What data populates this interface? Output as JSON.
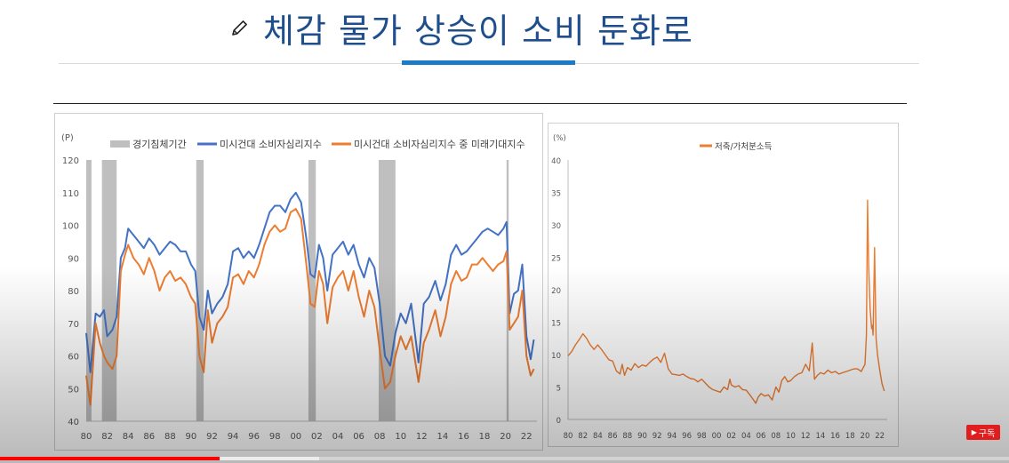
{
  "slide": {
    "title": "체감 물가 상승이 소비 둔화로",
    "title_icon": "pencil-icon"
  },
  "colors": {
    "blue": "#4472c4",
    "orange": "#ed7d31",
    "recession": "#bfbfbf",
    "title": "#1f4e8c",
    "accent": "#1a7cc8"
  },
  "video": {
    "subscribe_label": "구독",
    "progress": 0.218,
    "buffered": 0.316
  },
  "chart_data": [
    {
      "type": "line",
      "ylabel": "(P)",
      "ylim": [
        40,
        120
      ],
      "yticks": [
        40,
        50,
        60,
        70,
        80,
        90,
        100,
        110,
        120
      ],
      "xlim": [
        1980,
        2023
      ],
      "xticks": [
        "80",
        "82",
        "84",
        "86",
        "88",
        "90",
        "92",
        "94",
        "96",
        "98",
        "00",
        "02",
        "04",
        "06",
        "08",
        "10",
        "12",
        "14",
        "16",
        "18",
        "20",
        "22"
      ],
      "legend": [
        "경기침체기간",
        "미시건대 소비자심리지수",
        "미시건대 소비자심리지수 중 미래기대지수"
      ],
      "legend_position": "top",
      "recession_periods": [
        [
          1980.0,
          1980.5
        ],
        [
          1981.5,
          1982.9
        ],
        [
          1990.5,
          1991.2
        ],
        [
          2001.2,
          2001.9
        ],
        [
          2007.9,
          2009.5
        ],
        [
          2020.1,
          2020.3
        ]
      ],
      "series": [
        {
          "name": "미시건대 소비자심리지수",
          "x": [
            1980.0,
            1980.4,
            1980.9,
            1981.3,
            1981.7,
            1982.0,
            1982.5,
            1982.9,
            1983.3,
            1983.7,
            1984.0,
            1984.5,
            1985.0,
            1985.5,
            1986.0,
            1986.5,
            1987.0,
            1987.5,
            1988.0,
            1988.5,
            1989.0,
            1989.5,
            1990.0,
            1990.4,
            1990.8,
            1991.2,
            1991.6,
            1992.0,
            1992.5,
            1993.0,
            1993.5,
            1994.0,
            1994.5,
            1995.0,
            1995.5,
            1996.0,
            1996.5,
            1997.0,
            1997.5,
            1998.0,
            1998.5,
            1999.0,
            1999.5,
            2000.0,
            2000.5,
            2001.0,
            2001.4,
            2001.8,
            2002.2,
            2002.6,
            2003.0,
            2003.5,
            2004.0,
            2004.5,
            2005.0,
            2005.5,
            2006.0,
            2006.5,
            2007.0,
            2007.5,
            2008.0,
            2008.5,
            2009.0,
            2009.5,
            2010.0,
            2010.5,
            2011.0,
            2011.7,
            2012.2,
            2012.7,
            2013.3,
            2013.8,
            2014.3,
            2014.8,
            2015.3,
            2015.8,
            2016.3,
            2016.8,
            2017.3,
            2017.8,
            2018.3,
            2018.8,
            2019.3,
            2019.8,
            2020.1,
            2020.4,
            2020.8,
            2021.2,
            2021.6,
            2022.0,
            2022.4,
            2022.7
          ],
          "values": [
            67,
            55,
            73,
            72,
            74,
            66,
            68,
            72,
            90,
            93,
            99,
            97,
            95,
            93,
            96,
            94,
            91,
            93,
            95,
            94,
            92,
            92,
            88,
            86,
            72,
            68,
            80,
            73,
            76,
            78,
            82,
            92,
            93,
            90,
            92,
            90,
            94,
            99,
            104,
            106,
            106,
            104,
            108,
            110,
            107,
            96,
            85,
            84,
            94,
            90,
            80,
            91,
            93,
            95,
            91,
            94,
            88,
            84,
            90,
            87,
            76,
            60,
            57,
            67,
            73,
            70,
            76,
            58,
            76,
            78,
            83,
            77,
            82,
            91,
            94,
            91,
            92,
            94,
            96,
            98,
            99,
            98,
            97,
            99,
            101,
            73,
            79,
            80,
            88,
            66,
            59,
            65
          ]
        },
        {
          "name": "미시건대 소비자심리지수 중 미래기대지수",
          "x": [
            1980.0,
            1980.4,
            1980.9,
            1981.3,
            1981.7,
            1982.0,
            1982.5,
            1982.9,
            1983.3,
            1983.7,
            1984.0,
            1984.5,
            1985.0,
            1985.5,
            1986.0,
            1986.5,
            1987.0,
            1987.5,
            1988.0,
            1988.5,
            1989.0,
            1989.5,
            1990.0,
            1990.4,
            1990.8,
            1991.2,
            1991.6,
            1992.0,
            1992.5,
            1993.0,
            1993.5,
            1994.0,
            1994.5,
            1995.0,
            1995.5,
            1996.0,
            1996.5,
            1997.0,
            1997.5,
            1998.0,
            1998.5,
            1999.0,
            1999.5,
            2000.0,
            2000.5,
            2001.0,
            2001.4,
            2001.8,
            2002.2,
            2002.6,
            2003.0,
            2003.5,
            2004.0,
            2004.5,
            2005.0,
            2005.5,
            2006.0,
            2006.5,
            2007.0,
            2007.5,
            2008.0,
            2008.5,
            2009.0,
            2009.5,
            2010.0,
            2010.5,
            2011.0,
            2011.7,
            2012.2,
            2012.7,
            2013.3,
            2013.8,
            2014.3,
            2014.8,
            2015.3,
            2015.8,
            2016.3,
            2016.8,
            2017.3,
            2017.8,
            2018.3,
            2018.8,
            2019.3,
            2019.8,
            2020.1,
            2020.4,
            2020.8,
            2021.2,
            2021.6,
            2022.0,
            2022.4,
            2022.7
          ],
          "values": [
            54,
            45,
            70,
            64,
            60,
            58,
            56,
            60,
            86,
            91,
            94,
            90,
            88,
            85,
            90,
            86,
            80,
            84,
            86,
            83,
            84,
            82,
            78,
            76,
            60,
            55,
            74,
            64,
            70,
            72,
            75,
            84,
            85,
            82,
            86,
            84,
            88,
            94,
            98,
            100,
            98,
            99,
            104,
            105,
            102,
            88,
            76,
            75,
            86,
            82,
            70,
            81,
            84,
            86,
            80,
            86,
            78,
            72,
            80,
            75,
            62,
            50,
            52,
            60,
            66,
            62,
            66,
            52,
            64,
            68,
            74,
            66,
            72,
            82,
            86,
            83,
            84,
            88,
            88,
            90,
            88,
            86,
            88,
            89,
            92,
            68,
            70,
            72,
            80,
            60,
            54,
            56
          ]
        }
      ]
    },
    {
      "type": "line",
      "ylabel": "(%)",
      "ylim": [
        0,
        40
      ],
      "yticks": [
        0,
        5,
        10,
        15,
        20,
        25,
        30,
        35,
        40
      ],
      "xlim": [
        1980,
        2023
      ],
      "xticks": [
        "80",
        "82",
        "84",
        "86",
        "88",
        "90",
        "92",
        "94",
        "96",
        "98",
        "00",
        "02",
        "04",
        "06",
        "08",
        "10",
        "12",
        "14",
        "16",
        "18",
        "20",
        "22"
      ],
      "legend": [
        "저축/가처분소득"
      ],
      "legend_position": "top-center",
      "series": [
        {
          "name": "저축/가처분소득",
          "x": [
            1980.0,
            1980.5,
            1981.0,
            1981.5,
            1982.0,
            1982.5,
            1983.0,
            1983.5,
            1984.0,
            1984.5,
            1985.0,
            1985.5,
            1986.0,
            1986.5,
            1987.0,
            1987.3,
            1987.6,
            1988.0,
            1988.5,
            1989.0,
            1989.5,
            1990.0,
            1990.5,
            1991.0,
            1991.5,
            1992.0,
            1992.5,
            1993.0,
            1993.5,
            1994.0,
            1994.5,
            1995.0,
            1995.5,
            1996.0,
            1996.5,
            1997.0,
            1997.5,
            1998.0,
            1998.5,
            1999.0,
            1999.5,
            2000.0,
            2000.5,
            2001.0,
            2001.5,
            2001.8,
            2002.0,
            2002.5,
            2003.0,
            2003.5,
            2004.0,
            2004.5,
            2005.0,
            2005.3,
            2005.6,
            2006.0,
            2006.5,
            2007.0,
            2007.5,
            2008.0,
            2008.4,
            2008.8,
            2009.2,
            2009.6,
            2010.0,
            2010.5,
            2011.0,
            2011.5,
            2012.0,
            2012.5,
            2012.9,
            2013.2,
            2013.6,
            2014.0,
            2014.5,
            2015.0,
            2015.5,
            2016.0,
            2016.5,
            2017.0,
            2017.5,
            2018.0,
            2018.5,
            2019.0,
            2019.5,
            2020.0,
            2020.2,
            2020.35,
            2020.5,
            2020.7,
            2020.9,
            2021.0,
            2021.1,
            2021.3,
            2021.5,
            2021.7,
            2022.0,
            2022.3,
            2022.6
          ],
          "values": [
            9.8,
            10.5,
            11.5,
            12.3,
            13.2,
            12.5,
            11.5,
            10.8,
            11.5,
            10.8,
            10.0,
            9.2,
            9.0,
            7.5,
            7.0,
            8.5,
            6.8,
            8.0,
            7.6,
            8.6,
            8.0,
            8.4,
            8.2,
            8.8,
            9.3,
            9.6,
            8.8,
            10.2,
            7.8,
            7.0,
            6.9,
            6.8,
            7.0,
            6.6,
            6.3,
            6.2,
            5.8,
            6.2,
            5.6,
            5.0,
            4.6,
            4.4,
            4.2,
            5.0,
            4.6,
            6.2,
            5.3,
            5.0,
            5.2,
            4.6,
            4.5,
            3.8,
            3.0,
            2.5,
            3.4,
            4.0,
            3.6,
            3.8,
            3.0,
            5.0,
            4.2,
            6.0,
            6.6,
            5.8,
            6.0,
            6.6,
            7.0,
            7.2,
            8.5,
            7.5,
            11.8,
            6.2,
            6.8,
            7.2,
            7.0,
            7.6,
            7.2,
            7.4,
            7.0,
            7.2,
            7.4,
            7.6,
            7.8,
            7.8,
            7.4,
            8.5,
            13.0,
            33.8,
            24.0,
            17.0,
            14.0,
            14.5,
            13.0,
            26.5,
            12.5,
            10.0,
            7.5,
            5.5,
            4.4
          ]
        }
      ]
    }
  ]
}
